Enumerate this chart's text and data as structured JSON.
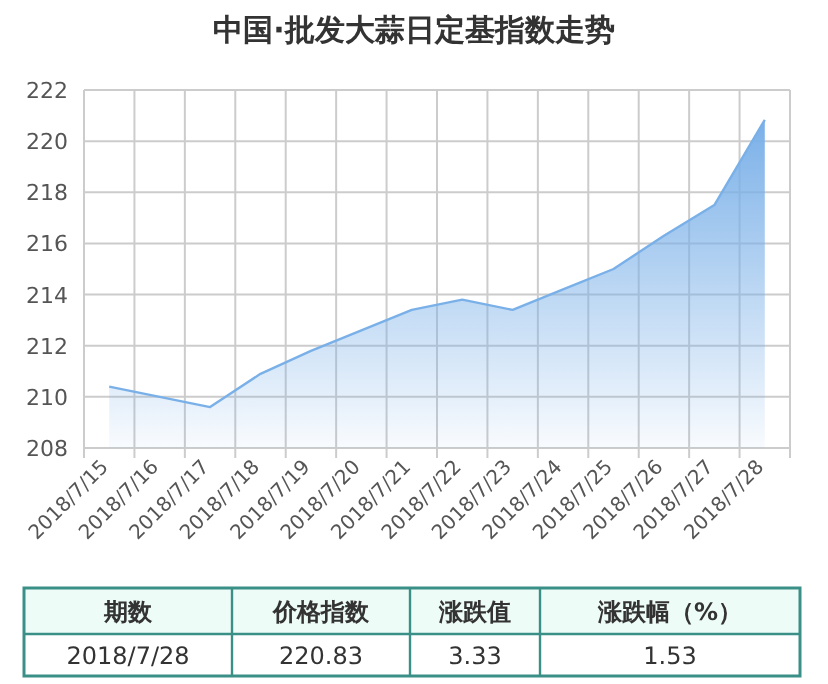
{
  "chart_data": [
    {
      "type": "area",
      "title": "中国·批发大蒜日定基指数走势",
      "categories": [
        "2018/7/15",
        "2018/7/16",
        "2018/7/17",
        "2018/7/18",
        "2018/7/19",
        "2018/7/20",
        "2018/7/21",
        "2018/7/22",
        "2018/7/23",
        "2018/7/24",
        "2018/7/25",
        "2018/7/26",
        "2018/7/27",
        "2018/7/28"
      ],
      "series": [
        {
          "color": "#7ab0e8",
          "values": [
            210.4,
            210.0,
            209.6,
            210.9,
            211.8,
            212.6,
            213.4,
            213.8,
            213.4,
            214.2,
            215.0,
            216.3,
            217.5,
            220.83
          ]
        }
      ],
      "ylim": [
        208,
        222
      ],
      "yticks": [
        208,
        210,
        212,
        214,
        216,
        218,
        220,
        222
      ],
      "grid": true,
      "marker": "none"
    },
    {
      "type": "other",
      "categories": [
        "期数",
        "价格指数",
        "涨跌值",
        "涨跌幅（%）"
      ],
      "annotations": [
        "2018/7/28",
        "220.83",
        "3.33",
        "1.53"
      ]
    }
  ]
}
